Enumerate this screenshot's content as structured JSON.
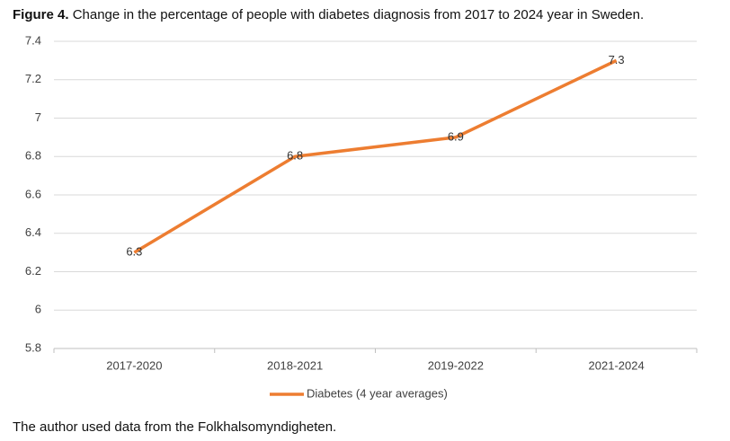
{
  "figure": {
    "label": "Figure 4.",
    "title": "Change in the percentage of people with diabetes diagnosis from 2017 to 2024 year in Sweden."
  },
  "source": "The author used data from the Folkhalsomyndigheten.",
  "chart_data": {
    "type": "line",
    "categories": [
      "2017-2020",
      "2018-2021",
      "2019-2022",
      "2021-2024"
    ],
    "series": [
      {
        "name": "Diabetes (4 year averages)",
        "color": "#ed7d31",
        "values": [
          6.3,
          6.8,
          6.9,
          7.3
        ]
      }
    ],
    "ylim": [
      5.8,
      7.4
    ],
    "yticks": [
      5.8,
      6,
      6.2,
      6.4,
      6.6,
      6.8,
      7,
      7.2,
      7.4
    ],
    "grid": true,
    "legend": "bottom",
    "data_labels": true
  }
}
